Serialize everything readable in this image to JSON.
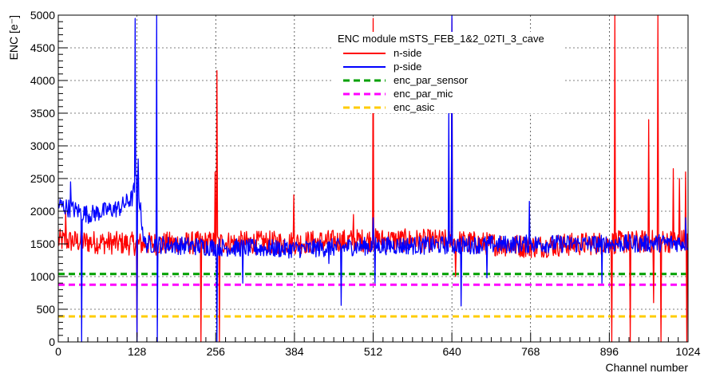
{
  "chart_data": {
    "type": "line",
    "title": "",
    "xlabel": "Channel number",
    "ylabel": "ENC [e⁻]",
    "xlim": [
      0,
      1024
    ],
    "ylim": [
      0,
      5000
    ],
    "xticks": [
      0,
      128,
      256,
      384,
      512,
      640,
      768,
      896,
      1024
    ],
    "yticks": [
      0,
      500,
      1000,
      1500,
      2000,
      2500,
      3000,
      3500,
      4000,
      4500,
      5000
    ],
    "grid": true,
    "legend": {
      "title": "ENC module mSTS_FEB_1&2_02TI_3_cave",
      "placement": "top-right"
    },
    "colors": {
      "n_side": "#ff0000",
      "p_side": "#0000ff",
      "enc_par_sensor": "#00a000",
      "enc_par_mic": "#ff00ff",
      "enc_asic": "#ffcc00"
    },
    "series": [
      {
        "name": "n-side",
        "kind": "line",
        "color": "#ff0000",
        "baseline": [
          [
            0,
            1550
          ],
          [
            128,
            1500
          ],
          [
            256,
            1520
          ],
          [
            384,
            1520
          ],
          [
            512,
            1560
          ],
          [
            640,
            1540
          ],
          [
            768,
            1460
          ],
          [
            896,
            1520
          ],
          [
            1024,
            1550
          ]
        ],
        "noise": 180,
        "spikes": [
          [
            12,
            1980
          ],
          [
            128,
            80
          ],
          [
            232,
            0
          ],
          [
            255,
            2600
          ],
          [
            258,
            4150
          ],
          [
            262,
            0
          ],
          [
            383,
            2250
          ],
          [
            480,
            1950
          ],
          [
            512,
            4950
          ],
          [
            640,
            4950
          ],
          [
            646,
            1000
          ],
          [
            900,
            0
          ],
          [
            905,
            5000
          ],
          [
            930,
            0
          ],
          [
            960,
            3400
          ],
          [
            968,
            600
          ],
          [
            975,
            5000
          ],
          [
            980,
            0
          ],
          [
            1000,
            2650
          ],
          [
            1010,
            2500
          ],
          [
            1020,
            2600
          ],
          [
            1022,
            0
          ]
        ]
      },
      {
        "name": "p-side",
        "kind": "line",
        "color": "#0000ff",
        "baseline": [
          [
            0,
            2100
          ],
          [
            50,
            1950
          ],
          [
            100,
            2050
          ],
          [
            120,
            2200
          ],
          [
            128,
            2500
          ],
          [
            140,
            1500
          ],
          [
            256,
            1450
          ],
          [
            384,
            1420
          ],
          [
            512,
            1470
          ],
          [
            640,
            1480
          ],
          [
            768,
            1500
          ],
          [
            896,
            1500
          ],
          [
            1024,
            1520
          ]
        ],
        "noise": 140,
        "spikes": [
          [
            20,
            2450
          ],
          [
            38,
            0
          ],
          [
            125,
            4950
          ],
          [
            128,
            0
          ],
          [
            130,
            2800
          ],
          [
            160,
            5000
          ],
          [
            161,
            0
          ],
          [
            258,
            0
          ],
          [
            300,
            900
          ],
          [
            440,
            1200
          ],
          [
            460,
            560
          ],
          [
            512,
            1900
          ],
          [
            515,
            900
          ],
          [
            635,
            3550
          ],
          [
            640,
            5000
          ],
          [
            655,
            550
          ],
          [
            697,
            980
          ],
          [
            766,
            2150
          ],
          [
            884,
            900
          ],
          [
            1020,
            1900
          ]
        ]
      },
      {
        "name": "enc_par_sensor",
        "kind": "hline",
        "style": "dashed",
        "color": "#00a000",
        "value": 1040
      },
      {
        "name": "enc_par_mic",
        "kind": "hline",
        "style": "dashed",
        "color": "#ff00ff",
        "value": 875
      },
      {
        "name": "enc_asic",
        "kind": "hline",
        "style": "dashed",
        "color": "#ffcc00",
        "value": 390
      }
    ]
  }
}
